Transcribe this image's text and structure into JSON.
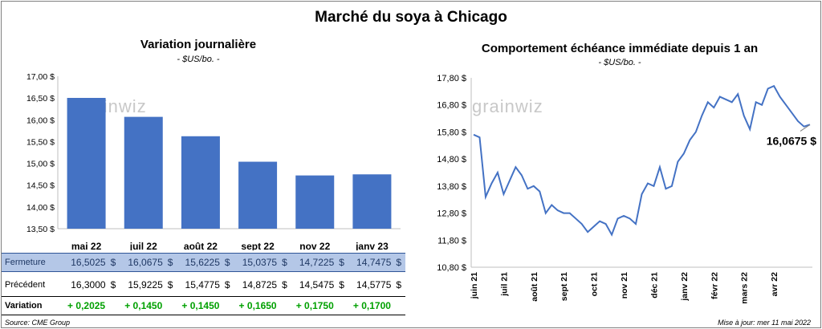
{
  "title": "Marché du soya à Chicago",
  "left": {
    "title": "Variation  journalière",
    "subtitle": "- $US/bo. -",
    "watermark": "grainwiz"
  },
  "right": {
    "title": "Comportement  échéance immédiate depuis 1 an",
    "subtitle": "- $US/bo. -",
    "watermark": "grainwiz",
    "last_label": "16,0675 $"
  },
  "table": {
    "fermeture_label": "Fermeture",
    "precedent_label": "Précédent",
    "variation_label": "Variation",
    "currency": "$",
    "fermeture": [
      "16,5025",
      "16,0675",
      "15,6225",
      "15,0375",
      "14,7225",
      "14,7475"
    ],
    "precedent": [
      "16,3000",
      "15,9225",
      "15,4775",
      "14,8725",
      "14,5475",
      "14,5775"
    ],
    "variation": [
      "+ 0,2025",
      "+ 0,1450",
      "+ 0,1450",
      "+ 0,1650",
      "+ 0,1750",
      "+ 0,1700"
    ]
  },
  "footer": {
    "source": "Source: CME Group",
    "updated": "Mise à jour: mer 11 mai 2022"
  },
  "colors": {
    "bar": "#4472c4",
    "line": "#4472c4",
    "fermeture_bg": "#b4c7e7",
    "positive": "#00a000"
  },
  "chart_data": [
    {
      "type": "bar",
      "categories": [
        "mai 22",
        "juil 22",
        "août 22",
        "sept 22",
        "nov 22",
        "janv 23"
      ],
      "values": [
        16.5025,
        16.0675,
        15.6225,
        15.0375,
        14.7225,
        14.7475
      ],
      "ylim": [
        13.5,
        17.0
      ],
      "yticks": [
        "13,50 $",
        "14,00 $",
        "14,50 $",
        "15,00 $",
        "15,50 $",
        "16,00 $",
        "16,50 $",
        "17,00 $"
      ],
      "grid": false
    },
    {
      "type": "line",
      "ylim": [
        10.8,
        17.8
      ],
      "yticks": [
        "10,80 $",
        "11,80 $",
        "12,80 $",
        "13,80 $",
        "14,80 $",
        "15,80 $",
        "16,80 $",
        "17,80 $"
      ],
      "xticks": [
        "juin 21",
        "juil 21",
        "août 21",
        "sept 21",
        "oct 21",
        "nov 21",
        "déc 21",
        "janv 22",
        "févr 22",
        "mars 22",
        "avr 22"
      ],
      "x_month_index": [
        0,
        0.2,
        0.4,
        0.6,
        0.8,
        1.0,
        1.2,
        1.4,
        1.6,
        1.8,
        2.0,
        2.2,
        2.4,
        2.6,
        2.8,
        3.0,
        3.2,
        3.4,
        3.6,
        3.8,
        4.0,
        4.2,
        4.4,
        4.6,
        4.8,
        5.0,
        5.2,
        5.4,
        5.6,
        5.8,
        6.0,
        6.2,
        6.4,
        6.6,
        6.8,
        7.0,
        7.2,
        7.4,
        7.6,
        7.8,
        8.0,
        8.2,
        8.4,
        8.6,
        8.8,
        9.0,
        9.2,
        9.4,
        9.6,
        9.8,
        10.0,
        10.2,
        10.4,
        10.6,
        10.8,
        11.0,
        11.2
      ],
      "values": [
        15.7,
        15.6,
        13.4,
        13.9,
        14.3,
        13.5,
        14.0,
        14.5,
        14.2,
        13.7,
        13.8,
        13.6,
        12.8,
        13.1,
        12.9,
        12.8,
        12.8,
        12.6,
        12.4,
        12.1,
        12.3,
        12.5,
        12.4,
        12.0,
        12.6,
        12.7,
        12.6,
        12.4,
        13.5,
        13.9,
        13.8,
        14.5,
        13.7,
        13.8,
        14.7,
        15.0,
        15.5,
        15.8,
        16.4,
        16.9,
        16.7,
        17.1,
        17.0,
        16.9,
        17.2,
        16.4,
        15.9,
        16.9,
        16.8,
        17.4,
        17.5,
        17.1,
        16.8,
        16.5,
        16.2,
        16.0,
        16.07
      ],
      "last_value": 16.0675
    }
  ]
}
